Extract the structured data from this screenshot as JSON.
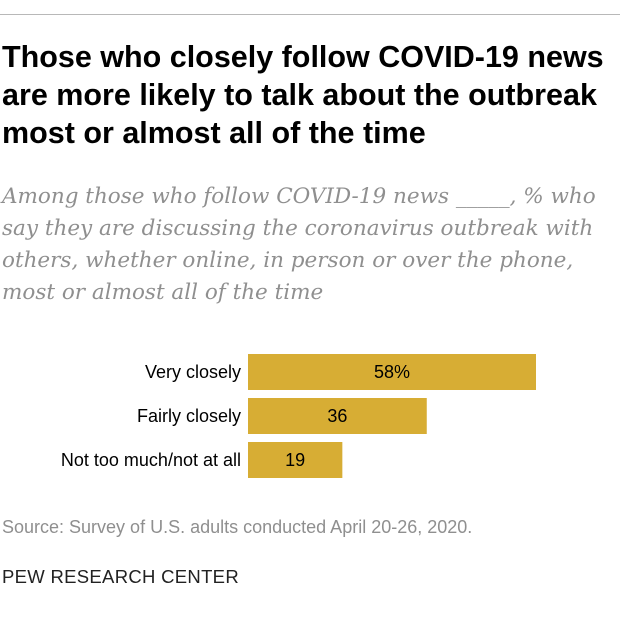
{
  "title": "Those who closely follow COVID-19 news are more likely to talk about the outbreak most or almost all of the time",
  "subtitle": "Among those who follow COVID-19 news _____, % who say they are discussing the coronavirus outbreak with others, whether online, in person or over the phone, most or almost all of the time",
  "source": "Source: Survey of U.S. adults conducted April 20-26, 2020.",
  "branding": "PEW RESEARCH CENTER",
  "colors": {
    "bar": "#d7ad34",
    "text": "#000000",
    "muted": "#8f8f8f"
  },
  "chart_data": {
    "type": "bar",
    "orientation": "horizontal",
    "categories": [
      "Very closely",
      "Fairly closely",
      "Not too much/not at all"
    ],
    "values": [
      58,
      36,
      19
    ],
    "value_labels": [
      "58%",
      "36",
      "19"
    ],
    "xlim": [
      0,
      100
    ],
    "grid": false
  }
}
